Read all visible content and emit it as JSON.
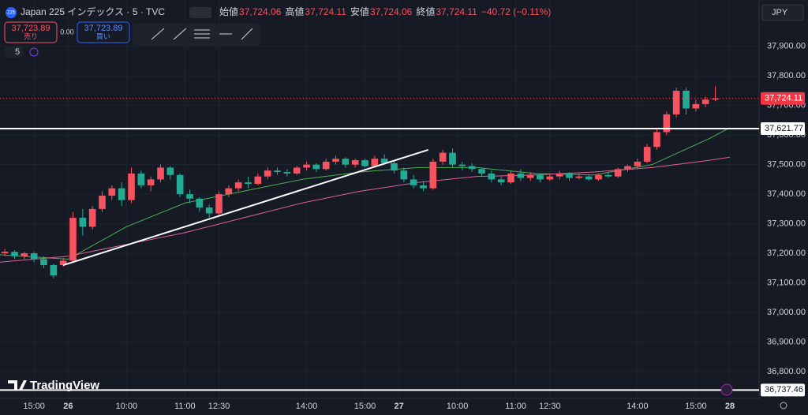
{
  "header": {
    "badge": "225",
    "symbol": "Japan 225 インデックス · 5 · TVC",
    "ohlc": [
      {
        "name": "始値",
        "value": "37,724.06"
      },
      {
        "name": "高値",
        "value": "37,724.11"
      },
      {
        "name": "安値",
        "value": "37,724.06"
      },
      {
        "name": "終値",
        "value": "37,724.11"
      }
    ],
    "change": "−40.72 (−0.11%)"
  },
  "trade": {
    "sell_price": "37,723.89",
    "sell": "売り",
    "spread": "0.00",
    "buy_price": "37,723.89",
    "buy": "買い"
  },
  "interval": "5",
  "currency": "JPY",
  "logo": "TradingView",
  "chart_data": {
    "type": "candlestick",
    "up_color": "#f7525f",
    "down_color": "#22ab94",
    "grid": true,
    "ylim": [
      36709,
      38057
    ],
    "xlim": [
      -26,
      130
    ],
    "yticks": [
      {
        "value": 36800,
        "label": "36,800.00"
      },
      {
        "value": 36900,
        "label": "36,900.00"
      },
      {
        "value": 37000,
        "label": "37,000.00"
      },
      {
        "value": 37100,
        "label": "37,100.00"
      },
      {
        "value": 37200,
        "label": "37,200.00"
      },
      {
        "value": 37300,
        "label": "37,300.00"
      },
      {
        "value": 37400,
        "label": "37,400.00"
      },
      {
        "value": 37500,
        "label": "37,500.00"
      },
      {
        "value": 37600,
        "label": "37,600.00"
      },
      {
        "value": 37700,
        "label": "37,700.00"
      },
      {
        "value": 37800,
        "label": "37,800.00"
      },
      {
        "value": 37900,
        "label": "37,900.00"
      }
    ],
    "xticks": [
      {
        "value": -19,
        "label": "15:00"
      },
      {
        "value": -12,
        "label": "26"
      },
      {
        "value": 0,
        "label": "10:00"
      },
      {
        "value": 12,
        "label": "11:00"
      },
      {
        "value": 19,
        "label": "12:30"
      },
      {
        "value": 37,
        "label": "14:00"
      },
      {
        "value": 49,
        "label": "15:00"
      },
      {
        "value": 56,
        "label": "27"
      },
      {
        "value": 68,
        "label": "10:00"
      },
      {
        "value": 80,
        "label": "11:00"
      },
      {
        "value": 87,
        "label": "12:30"
      },
      {
        "value": 105,
        "label": "14:00"
      },
      {
        "value": 117,
        "label": "15:00"
      },
      {
        "value": 124,
        "label": "28"
      }
    ],
    "x": [
      -25,
      -23,
      -21,
      -19,
      -17,
      -15,
      -13,
      -11,
      -9,
      -7,
      -5,
      -3,
      -1,
      1,
      3,
      5,
      7,
      9,
      11,
      13,
      15,
      17,
      19,
      21,
      23,
      25,
      27,
      29,
      31,
      33,
      35,
      37,
      39,
      41,
      43,
      45,
      47,
      49,
      51,
      53,
      55,
      57,
      59,
      61,
      63,
      65,
      67,
      69,
      71,
      73,
      75,
      77,
      79,
      81,
      83,
      85,
      87,
      89,
      91,
      93,
      95,
      97,
      99,
      101,
      103,
      105,
      107,
      109,
      111,
      113,
      115,
      117,
      119,
      121
    ],
    "open": [
      37200,
      37205,
      37190,
      37200,
      37180,
      37160,
      37160,
      37175,
      37320,
      37290,
      37350,
      37395,
      37420,
      37380,
      37470,
      37430,
      37450,
      37490,
      37465,
      37400,
      37385,
      37355,
      37335,
      37400,
      37420,
      37440,
      37435,
      37460,
      37480,
      37475,
      37470,
      37490,
      37500,
      37485,
      37510,
      37520,
      37500,
      37515,
      37495,
      37520,
      37505,
      37480,
      37450,
      37430,
      37420,
      37510,
      37540,
      37500,
      37495,
      37485,
      37470,
      37450,
      37440,
      37470,
      37455,
      37465,
      37450,
      37460,
      37470,
      37455,
      37460,
      37450,
      37465,
      37460,
      37485,
      37495,
      37510,
      37560,
      37610,
      37670,
      37750,
      37690,
      37705,
      37720
    ],
    "high": [
      37215,
      37210,
      37205,
      37205,
      37190,
      37165,
      37185,
      37340,
      37350,
      37360,
      37410,
      37430,
      37440,
      37490,
      37480,
      37460,
      37500,
      37495,
      37470,
      37415,
      37390,
      37365,
      37410,
      37430,
      37450,
      37460,
      37470,
      37490,
      37490,
      37485,
      37495,
      37510,
      37505,
      37520,
      37530,
      37525,
      37520,
      37520,
      37530,
      37535,
      37515,
      37490,
      37465,
      37445,
      37520,
      37550,
      37555,
      37510,
      37505,
      37490,
      37480,
      37460,
      37480,
      37485,
      37475,
      37470,
      37470,
      37480,
      37475,
      37470,
      37465,
      37470,
      37475,
      37490,
      37500,
      37520,
      37570,
      37620,
      37680,
      37760,
      37760,
      37720,
      37730,
      37765
    ],
    "low": [
      37190,
      37180,
      37180,
      37170,
      37150,
      37115,
      37155,
      37170,
      37260,
      37280,
      37340,
      37380,
      37360,
      37370,
      37420,
      37410,
      37440,
      37450,
      37390,
      37370,
      37340,
      37320,
      37330,
      37390,
      37410,
      37420,
      37430,
      37450,
      37465,
      37460,
      37465,
      37480,
      37475,
      37480,
      37500,
      37490,
      37490,
      37490,
      37490,
      37500,
      37470,
      37440,
      37420,
      37410,
      37415,
      37500,
      37490,
      37480,
      37475,
      37460,
      37440,
      37430,
      37435,
      37445,
      37445,
      37440,
      37445,
      37450,
      37445,
      37450,
      37445,
      37445,
      37455,
      37455,
      37475,
      37485,
      37505,
      37550,
      37600,
      37660,
      37670,
      37680,
      37695,
      37715
    ],
    "close": [
      37205,
      37190,
      37200,
      37180,
      37160,
      37125,
      37175,
      37320,
      37290,
      37350,
      37395,
      37420,
      37380,
      37470,
      37430,
      37450,
      37490,
      37465,
      37400,
      37385,
      37355,
      37335,
      37400,
      37420,
      37440,
      37435,
      37460,
      37480,
      37475,
      37470,
      37490,
      37500,
      37485,
      37510,
      37520,
      37500,
      37515,
      37495,
      37520,
      37505,
      37480,
      37450,
      37430,
      37420,
      37510,
      37540,
      37500,
      37495,
      37485,
      37470,
      37450,
      37440,
      37470,
      37455,
      37465,
      37450,
      37460,
      37470,
      37455,
      37460,
      37450,
      37465,
      37460,
      37485,
      37495,
      37510,
      37560,
      37610,
      37670,
      37750,
      37690,
      37705,
      37720,
      37724.11
    ],
    "series": [
      {
        "color": "#4caf50",
        "x": [
          -26,
          -12,
          0,
          12,
          24,
          36,
          48,
          60,
          72,
          84,
          96,
          108,
          120,
          124
        ],
        "values": [
          37195,
          37180,
          37290,
          37370,
          37410,
          37450,
          37475,
          37490,
          37490,
          37470,
          37465,
          37500,
          37590,
          37625
        ]
      },
      {
        "color": "#e0609a",
        "x": [
          -26,
          -12,
          0,
          12,
          24,
          36,
          48,
          60,
          72,
          84,
          96,
          108,
          120,
          124
        ],
        "values": [
          37170,
          37190,
          37230,
          37270,
          37320,
          37370,
          37410,
          37440,
          37460,
          37465,
          37475,
          37490,
          37515,
          37525
        ]
      }
    ],
    "trendline": {
      "x": [
        -13,
        62
      ],
      "y": [
        37160,
        37550
      ]
    },
    "hlines": [
      {
        "value": 37621.77,
        "label": "37,621.77"
      },
      {
        "value": 36737.46,
        "label": "36,737.46"
      }
    ],
    "last_price": {
      "value": 37724.11,
      "label": "37,724.11"
    }
  }
}
